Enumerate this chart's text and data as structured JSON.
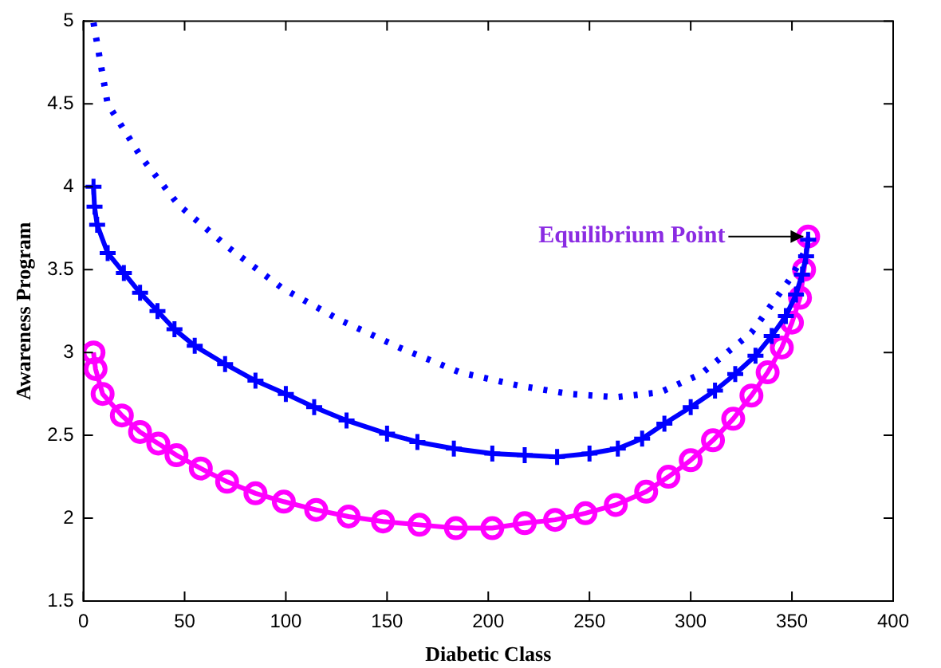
{
  "chart_data": {
    "type": "line",
    "xlabel": "Diabetic Class",
    "ylabel": "Awareness Program",
    "xlim": [
      0,
      400
    ],
    "xticks": [
      0,
      50,
      100,
      150,
      200,
      250,
      300,
      350,
      400
    ],
    "ylim": [
      1.5,
      5
    ],
    "yticks": [
      1.5,
      2,
      2.5,
      3,
      3.5,
      4,
      4.5,
      5
    ],
    "grid": false,
    "legend": false,
    "series": [
      {
        "color": "#0000ff",
        "line_style": "dotted",
        "marker": "none",
        "x": [
          5,
          12,
          28.5,
          47,
          72,
          98,
          126,
          156,
          186,
          215,
          240,
          263,
          285,
          305,
          330,
          350,
          358
        ],
        "values": [
          4.99,
          4.5,
          4.18,
          3.89,
          3.63,
          3.39,
          3.2,
          3.03,
          2.88,
          2.8,
          2.75,
          2.73,
          2.76,
          2.87,
          3.12,
          3.46,
          3.65
        ]
      },
      {
        "color": "#0000ff",
        "line_style": "solid",
        "marker": "cross",
        "x": [
          5,
          5.5,
          6.8,
          12,
          20,
          28,
          36.6,
          45,
          55,
          70,
          85,
          100,
          114,
          130,
          150,
          165,
          183,
          202,
          218,
          234,
          250,
          264,
          276,
          287,
          300,
          312,
          322,
          332,
          340,
          347,
          352,
          355,
          357,
          358
        ],
        "values": [
          4.0,
          3.88,
          3.77,
          3.6,
          3.48,
          3.36,
          3.25,
          3.14,
          3.04,
          2.93,
          2.83,
          2.75,
          2.67,
          2.59,
          2.51,
          2.46,
          2.42,
          2.39,
          2.38,
          2.37,
          2.39,
          2.42,
          2.48,
          2.57,
          2.67,
          2.77,
          2.87,
          2.98,
          3.1,
          3.22,
          3.35,
          3.47,
          3.58,
          3.68
        ]
      },
      {
        "color": "#ff00ff",
        "line_style": "solid",
        "marker": "circle",
        "x": [
          5,
          6,
          9.5,
          19,
          28,
          37,
          46,
          58,
          71,
          85,
          99,
          115,
          131,
          148,
          166,
          184,
          202,
          218,
          233,
          248,
          263,
          278,
          289,
          300,
          311,
          321,
          330,
          338,
          345,
          350,
          354,
          356,
          358
        ],
        "values": [
          3.0,
          2.9,
          2.75,
          2.62,
          2.52,
          2.45,
          2.38,
          2.3,
          2.22,
          2.15,
          2.1,
          2.05,
          2.01,
          1.98,
          1.96,
          1.94,
          1.94,
          1.97,
          1.99,
          2.03,
          2.08,
          2.16,
          2.25,
          2.35,
          2.47,
          2.6,
          2.74,
          2.88,
          3.03,
          3.18,
          3.33,
          3.5,
          3.7
        ]
      }
    ],
    "annotations": [
      {
        "text": "Equilibrium Point",
        "x": 358,
        "y": 3.7
      }
    ]
  }
}
